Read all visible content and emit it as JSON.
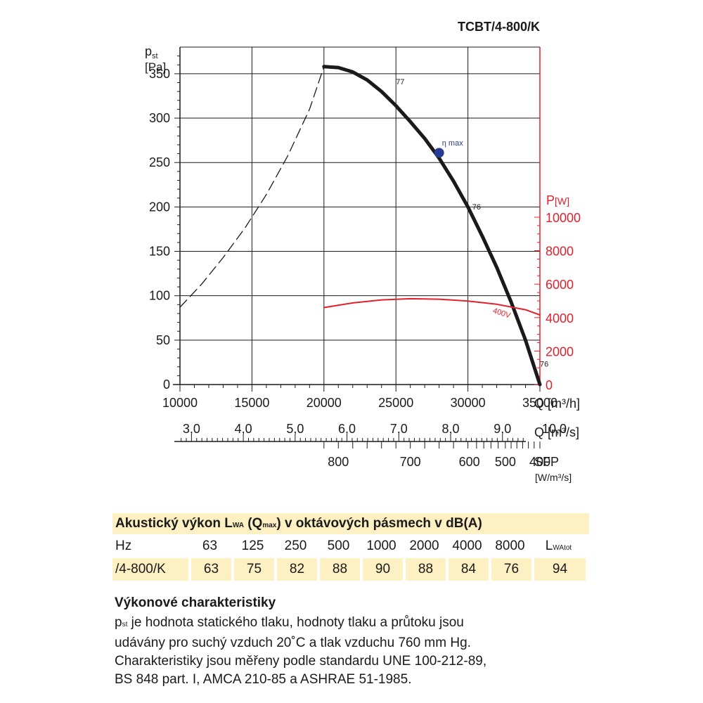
{
  "model_title": "TCBT/4-800/K",
  "chart_data": {
    "type": "line",
    "x_axis": {
      "label": "Q [m³/h]",
      "min": 10000,
      "max": 35000,
      "ticks": [
        10000,
        15000,
        20000,
        25000,
        30000,
        35000
      ]
    },
    "x_axis_secondary": {
      "label": "Q [m³/s]",
      "tick_labels": [
        "3,0",
        "4,0",
        "5,0",
        "6,0",
        "7,0",
        "8,0",
        "9,0",
        "10,0"
      ],
      "tick_values_m3h": [
        10800,
        14400,
        18000,
        21600,
        25200,
        28800,
        32400,
        36000
      ]
    },
    "sfp_axis": {
      "label": "SFP",
      "unit": "[W/m³/s]",
      "tick_labels": [
        "800",
        "700",
        "600",
        "500",
        "400"
      ],
      "tick_positions_m3h": [
        21000,
        26000,
        30100,
        32600,
        35000
      ]
    },
    "y_axis_left": {
      "label": "p",
      "label_sub": "st",
      "unit": "[Pa]",
      "min": 0,
      "max": 380,
      "ticks": [
        0,
        50,
        100,
        150,
        200,
        250,
        300,
        350
      ]
    },
    "y_axis_right": {
      "label": "P",
      "unit": "[W]",
      "min": 0,
      "max": 10000,
      "ticks": [
        0,
        2000,
        4000,
        6000,
        8000,
        10000
      ],
      "color": "#e4202a"
    },
    "series": [
      {
        "role": "pressure",
        "color": "#1a1a1a",
        "x": [
          20000,
          21000,
          22000,
          23000,
          24000,
          25000,
          26000,
          27000,
          28000,
          29000,
          30000,
          31000,
          32000,
          33000,
          34000,
          35000
        ],
        "y": [
          358,
          357,
          352,
          343,
          330,
          314,
          296,
          277,
          255,
          229,
          200,
          167,
          132,
          93,
          50,
          0
        ]
      },
      {
        "role": "pressure-unstable",
        "style": "dashed",
        "color": "#1a1a1a",
        "x": [
          10000,
          11500,
          13000,
          14500,
          16000,
          17500,
          19000,
          20000
        ],
        "y": [
          87,
          113,
          143,
          176,
          214,
          258,
          310,
          358
        ]
      },
      {
        "role": "power",
        "color": "#e4202a",
        "axis": "right",
        "x": [
          20000,
          22000,
          24000,
          26000,
          28000,
          30000,
          32000,
          34000,
          35000
        ],
        "y": [
          4600,
          4880,
          5060,
          5130,
          5100,
          4990,
          4800,
          4470,
          4160
        ]
      }
    ],
    "annotations": [
      {
        "text": "77",
        "x": 25000,
        "y": 338
      },
      {
        "text": "η max",
        "x": 28200,
        "y": 269,
        "color": "#283c94"
      },
      {
        "text": "76",
        "x": 30300,
        "y": 197
      },
      {
        "text": "400V",
        "x": 31700,
        "y": 4300,
        "color": "#e4202a"
      },
      {
        "text": "76",
        "x": 35000,
        "y": 20
      }
    ],
    "markers": [
      {
        "label": "η max",
        "x": 28000,
        "y": 261,
        "color": "#283c94"
      }
    ],
    "grid": true
  },
  "acoustic": {
    "title_main": "Akustický výkon L",
    "title_sub1": "WA",
    "title_mid": " (Q",
    "title_sub2": "max",
    "title_end": ") v oktávových pásmech v dB(A)",
    "header_label": "Hz",
    "headers": [
      "63",
      "125",
      "250",
      "500",
      "1000",
      "2000",
      "4000",
      "8000"
    ],
    "total_label": "L",
    "total_sub": "WAtot",
    "row_label": "/4-800/K",
    "values": [
      "63",
      "75",
      "82",
      "88",
      "90",
      "88",
      "84",
      "76"
    ],
    "total_value": "94"
  },
  "performance": {
    "title": "Výkonové charakteristiky",
    "line1_p": "p",
    "line1_sub": "st",
    "line1_rest": " je hodnota statického tlaku, hodnoty tlaku a průtoku jsou",
    "line2": "udávány pro suchý vzduch 20˚C a tlak vzduchu 760 mm Hg.",
    "line3": "Charakteristiky jsou měřeny podle standardu UNE 100-212-89,",
    "line4": "BS 848 part. I, AMCA 210-85 a ASHRAE 51-1985."
  }
}
